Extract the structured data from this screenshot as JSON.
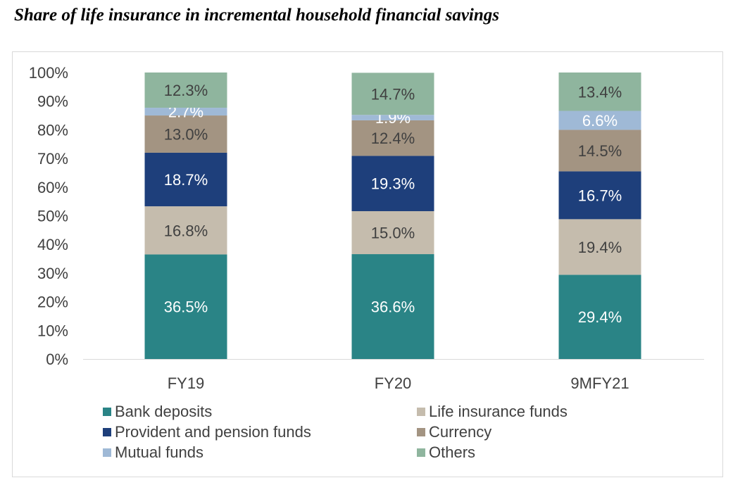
{
  "title": "Share of life insurance in incremental household financial savings",
  "chart_data": {
    "type": "bar",
    "stacked": true,
    "title": "Share of life insurance in incremental household financial savings",
    "categories": [
      "FY19",
      "FY20",
      "9MFY21"
    ],
    "y_ticks": [
      "0%",
      "10%",
      "20%",
      "30%",
      "40%",
      "50%",
      "60%",
      "70%",
      "80%",
      "90%",
      "100%"
    ],
    "ylim": [
      0,
      100
    ],
    "xlabel": "",
    "ylabel": "",
    "legend_position": "bottom",
    "series": [
      {
        "name": "Bank deposits",
        "color": "#2a8486",
        "label_color": "#ffffff",
        "values": [
          36.5,
          36.6,
          29.4
        ],
        "labels": [
          "36.5%",
          "36.6%",
          "29.4%"
        ]
      },
      {
        "name": "Life insurance funds",
        "color": "#c5bcad",
        "label_color": "#404040",
        "values": [
          16.8,
          15.0,
          19.4
        ],
        "labels": [
          "16.8%",
          "15.0%",
          "19.4%"
        ]
      },
      {
        "name": "Provident and pension funds",
        "color": "#1e3f7b",
        "label_color": "#ffffff",
        "values": [
          18.7,
          19.3,
          16.7
        ],
        "labels": [
          "18.7%",
          "19.3%",
          "16.7%"
        ]
      },
      {
        "name": "Currency",
        "color": "#a39482",
        "label_color": "#404040",
        "values": [
          13.0,
          12.4,
          14.5
        ],
        "labels": [
          "13.0%",
          "12.4%",
          "14.5%"
        ]
      },
      {
        "name": "Mutual funds",
        "color": "#9fb9d6",
        "label_color": "#ffffff",
        "values": [
          2.7,
          1.9,
          6.6
        ],
        "labels": [
          "2.7%",
          "1.9%",
          "6.6%"
        ]
      },
      {
        "name": "Others",
        "color": "#8fb59e",
        "label_color": "#404040",
        "values": [
          12.3,
          14.7,
          13.4
        ],
        "labels": [
          "12.3%",
          "14.7%",
          "13.4%"
        ]
      }
    ]
  }
}
